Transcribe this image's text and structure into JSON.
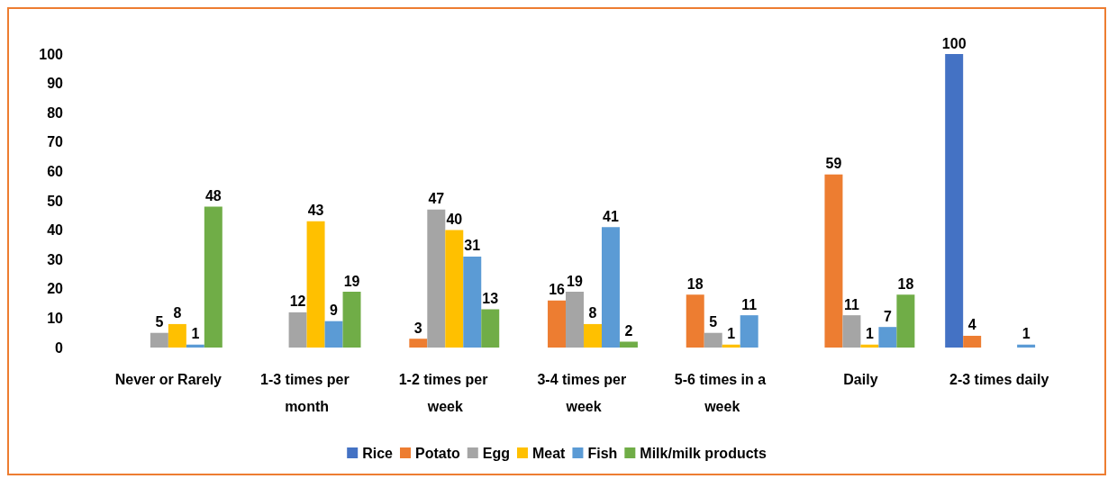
{
  "chart_data": {
    "type": "bar",
    "categories": [
      "Never or Rarely",
      "1-3 times per month",
      "1-2 times per week",
      "3-4 times per week",
      "5-6 times in a week",
      "Daily",
      "2-3 times daily"
    ],
    "series": [
      {
        "name": "Rice",
        "color": "#4472c4",
        "values": [
          null,
          null,
          null,
          null,
          null,
          null,
          100
        ]
      },
      {
        "name": "Potato",
        "color": "#ed7d31",
        "values": [
          null,
          null,
          3,
          16,
          18,
          59,
          4
        ]
      },
      {
        "name": "Egg",
        "color": "#a5a5a5",
        "values": [
          5,
          12,
          47,
          19,
          5,
          11,
          null
        ]
      },
      {
        "name": "Meat",
        "color": "#ffc000",
        "values": [
          8,
          43,
          40,
          8,
          1,
          1,
          null
        ]
      },
      {
        "name": "Fish",
        "color": "#5b9bd5",
        "values": [
          1,
          9,
          31,
          41,
          11,
          7,
          1
        ]
      },
      {
        "name": "Milk/milk products",
        "color": "#70ad47",
        "values": [
          48,
          19,
          13,
          2,
          null,
          18,
          null
        ]
      }
    ],
    "ylim": [
      0,
      100
    ],
    "yticks": [
      0,
      10,
      20,
      30,
      40,
      50,
      60,
      70,
      80,
      90,
      100
    ],
    "grid": false,
    "legend": "bottom",
    "data_labels": true
  }
}
